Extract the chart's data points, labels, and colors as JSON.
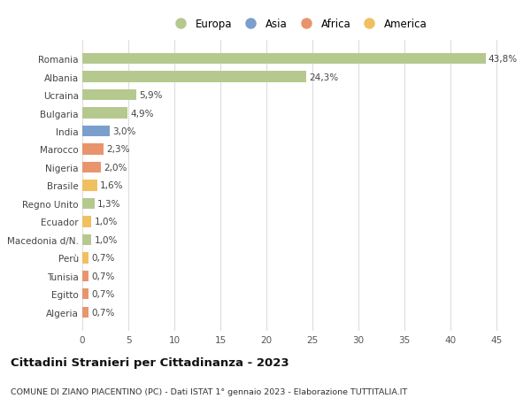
{
  "categories": [
    "Romania",
    "Albania",
    "Ucraina",
    "Bulgaria",
    "India",
    "Marocco",
    "Nigeria",
    "Brasile",
    "Regno Unito",
    "Ecuador",
    "Macedonia d/N.",
    "Perù",
    "Tunisia",
    "Egitto",
    "Algeria"
  ],
  "values": [
    43.8,
    24.3,
    5.9,
    4.9,
    3.0,
    2.3,
    2.0,
    1.6,
    1.3,
    1.0,
    1.0,
    0.7,
    0.7,
    0.7,
    0.7
  ],
  "labels": [
    "43,8%",
    "24,3%",
    "5,9%",
    "4,9%",
    "3,0%",
    "2,3%",
    "2,0%",
    "1,6%",
    "1,3%",
    "1,0%",
    "1,0%",
    "0,7%",
    "0,7%",
    "0,7%",
    "0,7%"
  ],
  "colors": [
    "#b5c98e",
    "#b5c98e",
    "#b5c98e",
    "#b5c98e",
    "#7b9fcc",
    "#e8956d",
    "#e8956d",
    "#f0c060",
    "#b5c98e",
    "#f0c060",
    "#b5c98e",
    "#f0c060",
    "#e8956d",
    "#e8956d",
    "#e8956d"
  ],
  "legend_labels": [
    "Europa",
    "Asia",
    "Africa",
    "America"
  ],
  "legend_colors": [
    "#b5c98e",
    "#7b9fcc",
    "#e8956d",
    "#f0c060"
  ],
  "title": "Cittadini Stranieri per Cittadinanza - 2023",
  "subtitle": "COMUNE DI ZIANO PIACENTINO (PC) - Dati ISTAT 1° gennaio 2023 - Elaborazione TUTTITALIA.IT",
  "xlim": [
    0,
    47
  ],
  "xticks": [
    0,
    5,
    10,
    15,
    20,
    25,
    30,
    35,
    40,
    45
  ],
  "background_color": "#ffffff",
  "grid_color": "#dddddd",
  "bar_height": 0.6
}
